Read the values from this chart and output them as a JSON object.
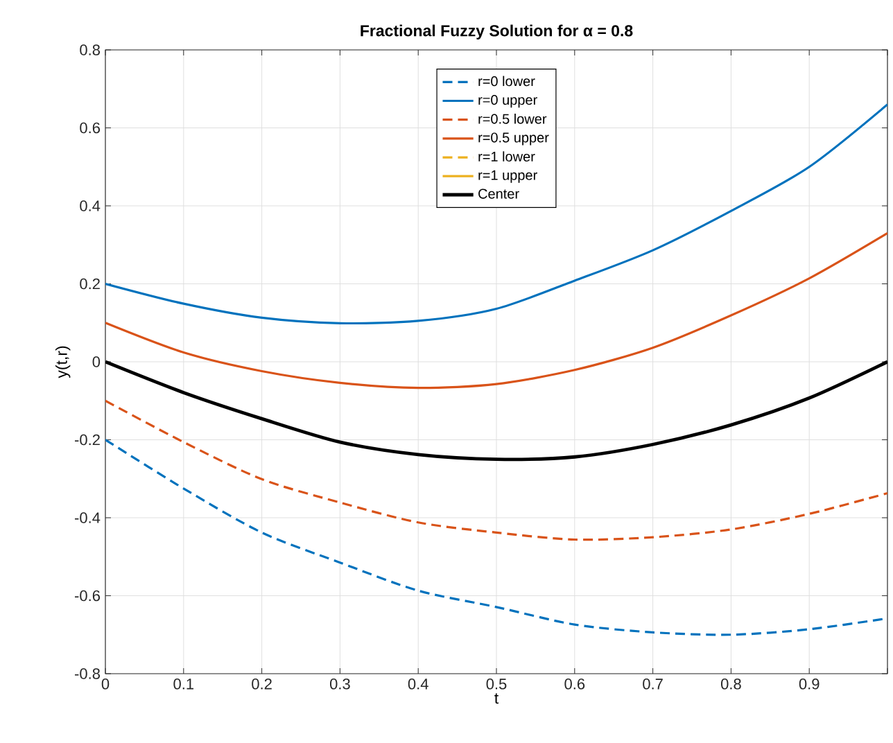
{
  "chart_data": {
    "type": "line",
    "title": "Fractional Fuzzy Solution for α = 0.8",
    "xlabel": "t",
    "ylabel": "y(t,r)",
    "x": [
      0,
      0.1,
      0.2,
      0.3,
      0.4,
      0.5,
      0.6,
      0.7,
      0.8,
      0.9,
      1.0
    ],
    "series": [
      {
        "name": "r=0 lower",
        "color": "#0072bd",
        "line_style": "dashed",
        "values": [
          -0.2,
          -0.325,
          -0.438,
          -0.515,
          -0.587,
          -0.629,
          -0.674,
          -0.694,
          -0.7,
          -0.686,
          -0.658
        ]
      },
      {
        "name": "r=0 upper",
        "color": "#0072bd",
        "line_style": "solid",
        "values": [
          0.2,
          0.149,
          0.113,
          0.099,
          0.105,
          0.136,
          0.208,
          0.286,
          0.387,
          0.5,
          0.66
        ]
      },
      {
        "name": "r=0.5 lower",
        "color": "#d95319",
        "line_style": "dashed",
        "values": [
          -0.1,
          -0.206,
          -0.301,
          -0.361,
          -0.412,
          -0.438,
          -0.456,
          -0.45,
          -0.43,
          -0.39,
          -0.337
        ]
      },
      {
        "name": "r=0.5 upper",
        "color": "#d95319",
        "line_style": "solid",
        "values": [
          0.1,
          0.024,
          -0.024,
          -0.054,
          -0.067,
          -0.057,
          -0.021,
          0.036,
          0.119,
          0.214,
          0.33
        ]
      },
      {
        "name": "r=1 lower",
        "color": "#edb120",
        "line_style": "dashed",
        "values": [
          null,
          null,
          null,
          null,
          null,
          null,
          null,
          null,
          null,
          null,
          null
        ]
      },
      {
        "name": "r=1 upper",
        "color": "#edb120",
        "line_style": "solid",
        "values": [
          null,
          null,
          null,
          null,
          null,
          null,
          null,
          null,
          null,
          null,
          null
        ]
      },
      {
        "name": "Center",
        "color": "#000000",
        "line_style": "solid",
        "values": [
          0,
          -0.079,
          -0.146,
          -0.206,
          -0.238,
          -0.25,
          -0.244,
          -0.212,
          -0.162,
          -0.093,
          0
        ]
      }
    ],
    "xlim": [
      0,
      1
    ],
    "ylim": [
      -0.8,
      0.8
    ],
    "xticks": [
      0,
      0.1,
      0.2,
      0.3,
      0.4,
      0.5,
      0.6,
      0.7,
      0.8,
      0.9,
      {
        "value": 1,
        "label": null
      }
    ],
    "yticks": [
      -0.8,
      -0.6,
      -0.4,
      -0.2,
      0,
      0.2,
      0.4,
      0.6,
      0.8
    ],
    "grid": true,
    "legend": "top",
    "marker": "none"
  }
}
